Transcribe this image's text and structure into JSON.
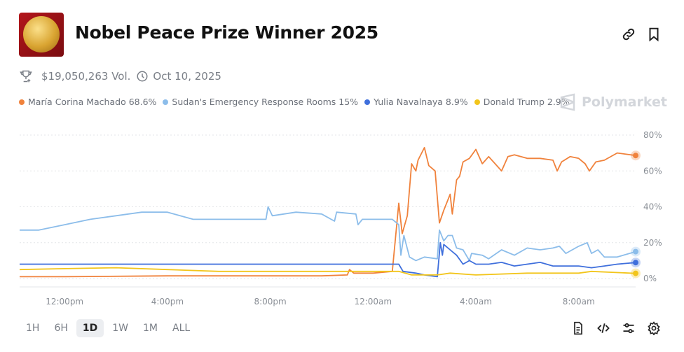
{
  "header": {
    "title": "Nobel Peace Prize Winner 2025",
    "volume": "$19,050,263 Vol.",
    "date": "Oct 10, 2025",
    "icons": [
      "trophy-icon",
      "clock-icon",
      "link-icon",
      "bookmark-icon"
    ]
  },
  "brand": "Polymarket",
  "legend": [
    {
      "label": "María Corina Machado 68.6%",
      "color": "#f0823c"
    },
    {
      "label": "Sudan's Emergency Response Rooms 15%",
      "color": "#8cbdea"
    },
    {
      "label": "Yulia Navalnaya 8.9%",
      "color": "#3f6fdc"
    },
    {
      "label": "Donald Trump 2.9%",
      "color": "#f2c51b"
    }
  ],
  "time_ranges": [
    {
      "label": "1H",
      "selected": false
    },
    {
      "label": "6H",
      "selected": false
    },
    {
      "label": "1D",
      "selected": true
    },
    {
      "label": "1W",
      "selected": false
    },
    {
      "label": "1M",
      "selected": false
    },
    {
      "label": "ALL",
      "selected": false
    }
  ],
  "toolbar_icons": [
    "document-icon",
    "code-icon",
    "sliders-icon",
    "gear-icon"
  ],
  "chart_data": {
    "type": "line",
    "ylim": [
      0,
      80
    ],
    "y_ticks": [
      "0%",
      "20%",
      "40%",
      "60%",
      "80%"
    ],
    "x_ticks": [
      "12:00pm",
      "4:00pm",
      "8:00pm",
      "12:00am",
      "4:00am",
      "8:00am"
    ],
    "x_range": [
      "10:15am",
      "10:13am"
    ],
    "grid": true,
    "legend_position": "top-left",
    "series": [
      {
        "name": "María Corina Machado",
        "color": "#f0823c",
        "points": [
          [
            "10:15am",
            1
          ],
          [
            "12:00pm",
            1
          ],
          [
            "4:00pm",
            1.5
          ],
          [
            "8:00pm",
            1.5
          ],
          [
            "10:00pm",
            1.5
          ],
          [
            "11:00pm",
            2
          ],
          [
            "11:05pm",
            5
          ],
          [
            "11:15pm",
            3
          ],
          [
            "12:00am",
            3
          ],
          [
            "12:45am",
            4
          ],
          [
            "1:00am",
            42
          ],
          [
            "1:08am",
            25
          ],
          [
            "1:20am",
            35
          ],
          [
            "1:30am",
            64
          ],
          [
            "1:40am",
            60
          ],
          [
            "1:45am",
            66
          ],
          [
            "2:00am",
            73
          ],
          [
            "2:10am",
            63
          ],
          [
            "2:25am",
            60
          ],
          [
            "2:35am",
            31
          ],
          [
            "2:45am",
            38
          ],
          [
            "3:00am",
            47
          ],
          [
            "3:05am",
            36
          ],
          [
            "3:15am",
            55
          ],
          [
            "3:22am",
            57
          ],
          [
            "3:30am",
            65
          ],
          [
            "3:45am",
            67
          ],
          [
            "4:00am",
            72
          ],
          [
            "4:15am",
            64
          ],
          [
            "4:30am",
            68
          ],
          [
            "4:45am",
            64
          ],
          [
            "5:00am",
            60
          ],
          [
            "5:15am",
            68
          ],
          [
            "5:30am",
            69
          ],
          [
            "6:00am",
            67
          ],
          [
            "6:30am",
            67
          ],
          [
            "7:00am",
            66
          ],
          [
            "7:10am",
            60
          ],
          [
            "7:20am",
            65
          ],
          [
            "7:40am",
            68
          ],
          [
            "8:00am",
            67
          ],
          [
            "8:15am",
            64
          ],
          [
            "8:25am",
            60
          ],
          [
            "8:40am",
            65
          ],
          [
            "9:00am",
            66
          ],
          [
            "9:30am",
            70
          ],
          [
            "10:13am",
            68.6
          ]
        ]
      },
      {
        "name": "Sudan's Emergency Response Rooms",
        "color": "#8cbdea",
        "points": [
          [
            "10:15am",
            27
          ],
          [
            "11:00am",
            27
          ],
          [
            "12:00pm",
            30
          ],
          [
            "1:00pm",
            33
          ],
          [
            "2:00pm",
            35
          ],
          [
            "3:00pm",
            37
          ],
          [
            "4:00pm",
            37
          ],
          [
            "5:00pm",
            33
          ],
          [
            "6:00pm",
            33
          ],
          [
            "7:00pm",
            33
          ],
          [
            "7:50pm",
            33
          ],
          [
            "7:55pm",
            40
          ],
          [
            "8:05pm",
            35
          ],
          [
            "9:00pm",
            37
          ],
          [
            "10:00pm",
            36
          ],
          [
            "10:30pm",
            32
          ],
          [
            "10:35pm",
            37
          ],
          [
            "11:20pm",
            36
          ],
          [
            "11:25pm",
            30
          ],
          [
            "11:35pm",
            33
          ],
          [
            "12:45am",
            33
          ],
          [
            "1:00am",
            30
          ],
          [
            "1:05am",
            13
          ],
          [
            "1:12am",
            24
          ],
          [
            "1:25am",
            12
          ],
          [
            "1:40am",
            10
          ],
          [
            "2:00am",
            12
          ],
          [
            "2:30am",
            11
          ],
          [
            "2:35am",
            27
          ],
          [
            "2:45am",
            21
          ],
          [
            "2:55am",
            24
          ],
          [
            "3:05am",
            24
          ],
          [
            "3:15am",
            17
          ],
          [
            "3:30am",
            16
          ],
          [
            "3:45am",
            10
          ],
          [
            "3:50am",
            14
          ],
          [
            "4:15am",
            13
          ],
          [
            "4:30am",
            11
          ],
          [
            "5:00am",
            16
          ],
          [
            "5:30am",
            13
          ],
          [
            "6:00am",
            17
          ],
          [
            "6:30am",
            16
          ],
          [
            "7:00am",
            17
          ],
          [
            "7:15am",
            18
          ],
          [
            "7:30am",
            14
          ],
          [
            "8:00am",
            18
          ],
          [
            "8:20am",
            20
          ],
          [
            "8:30am",
            14
          ],
          [
            "8:45am",
            16
          ],
          [
            "9:00am",
            12
          ],
          [
            "9:30am",
            12
          ],
          [
            "10:13am",
            15
          ]
        ]
      },
      {
        "name": "Yulia Navalnaya",
        "color": "#3f6fdc",
        "points": [
          [
            "10:15am",
            8
          ],
          [
            "4:00pm",
            8
          ],
          [
            "8:00pm",
            8
          ],
          [
            "12:00am",
            8
          ],
          [
            "1:00am",
            8
          ],
          [
            "1:10am",
            4
          ],
          [
            "1:40am",
            3
          ],
          [
            "2:00am",
            2
          ],
          [
            "2:30am",
            1
          ],
          [
            "2:37am",
            20
          ],
          [
            "2:42am",
            13
          ],
          [
            "2:45am",
            19
          ],
          [
            "3:00am",
            16
          ],
          [
            "3:15am",
            13
          ],
          [
            "3:30am",
            8
          ],
          [
            "3:45am",
            10
          ],
          [
            "4:00am",
            8
          ],
          [
            "4:30am",
            8
          ],
          [
            "5:00am",
            9
          ],
          [
            "5:30am",
            7
          ],
          [
            "6:00am",
            8
          ],
          [
            "6:30am",
            9
          ],
          [
            "7:00am",
            7
          ],
          [
            "7:30am",
            7
          ],
          [
            "8:00am",
            7
          ],
          [
            "8:30am",
            6
          ],
          [
            "9:00am",
            7
          ],
          [
            "9:30am",
            8
          ],
          [
            "10:13am",
            8.9
          ]
        ]
      },
      {
        "name": "Donald Trump",
        "color": "#f2c51b",
        "points": [
          [
            "10:15am",
            5
          ],
          [
            "12:00pm",
            5.5
          ],
          [
            "2:00pm",
            6
          ],
          [
            "4:00pm",
            5
          ],
          [
            "6:00pm",
            4
          ],
          [
            "8:00pm",
            4
          ],
          [
            "10:00pm",
            4
          ],
          [
            "12:00am",
            4
          ],
          [
            "1:00am",
            4
          ],
          [
            "1:30am",
            2
          ],
          [
            "2:30am",
            2
          ],
          [
            "3:00am",
            3
          ],
          [
            "4:00am",
            2
          ],
          [
            "6:00am",
            3
          ],
          [
            "8:00am",
            3
          ],
          [
            "8:30am",
            4
          ],
          [
            "10:13am",
            2.9
          ]
        ]
      }
    ]
  }
}
